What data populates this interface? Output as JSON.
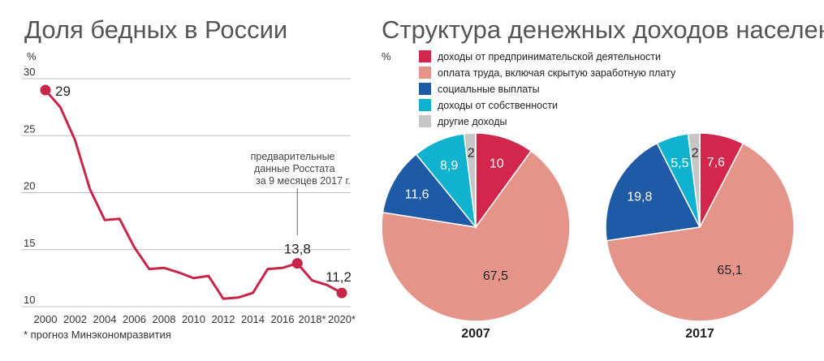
{
  "chart_data": [
    {
      "type": "line",
      "title": "Доля бедных в России",
      "ylabel": "%",
      "ylim": [
        10,
        30
      ],
      "yticks": [
        10,
        15,
        20,
        25,
        30
      ],
      "xlim": [
        2000,
        2020
      ],
      "xtick_labels": [
        "2000",
        "2002",
        "2004",
        "2006",
        "2008",
        "2010",
        "2012",
        "2014",
        "2016",
        "2018*",
        "2020*"
      ],
      "xtick_values": [
        2000,
        2002,
        2004,
        2006,
        2008,
        2010,
        2012,
        2014,
        2016,
        2018,
        2020
      ],
      "series": [
        {
          "color": "#c8254a",
          "x": [
            2000,
            2001,
            2002,
            2003,
            2004,
            2005,
            2006,
            2007,
            2008,
            2009,
            2010,
            2011,
            2012,
            2013,
            2014,
            2015,
            2016,
            2017,
            2018,
            2019,
            2020
          ],
          "y": [
            29,
            27.5,
            24.6,
            20.3,
            17.6,
            17.7,
            15.2,
            13.3,
            13.4,
            13.0,
            12.5,
            12.7,
            10.7,
            10.8,
            11.2,
            13.3,
            13.4,
            13.8,
            12.3,
            11.9,
            11.2
          ]
        }
      ],
      "labeled_points": [
        {
          "x": 2000,
          "y": 29,
          "label": "29"
        },
        {
          "x": 2017,
          "y": 13.8,
          "label": "13,8"
        },
        {
          "x": 2020,
          "y": 11.2,
          "label": "11,2"
        }
      ],
      "annotation": [
        "предварительные",
        "данные Росстата",
        "за 9 месяцев 2017 г."
      ],
      "footnote": "* прогноз Минэкономразвития",
      "grid": true
    },
    {
      "type": "pie",
      "title": "Структура денежных доходов населения",
      "ylabel": "%",
      "legend_position": "top",
      "categories": [
        {
          "label": "доходы от предпринимательской деятельности",
          "color": "#d3264d"
        },
        {
          "label": "оплата труда, включая скрытую заработную плату",
          "color": "#e5948a"
        },
        {
          "label": "социальные выплаты",
          "color": "#1f5aa7"
        },
        {
          "label": "доходы от собственности",
          "color": "#0fb3cf"
        },
        {
          "label": "другие доходы",
          "color": "#c6c6c6"
        }
      ],
      "pies": [
        {
          "name": "2007",
          "values": [
            10,
            67.5,
            11.6,
            8.9,
            2
          ],
          "labels": [
            "10",
            "67,5",
            "11,6",
            "8,9",
            "2"
          ]
        },
        {
          "name": "2017",
          "values": [
            7.6,
            65.1,
            19.8,
            5.5,
            2
          ],
          "labels": [
            "7,6",
            "65,1",
            "19,8",
            "5,5",
            "2"
          ]
        }
      ]
    }
  ]
}
